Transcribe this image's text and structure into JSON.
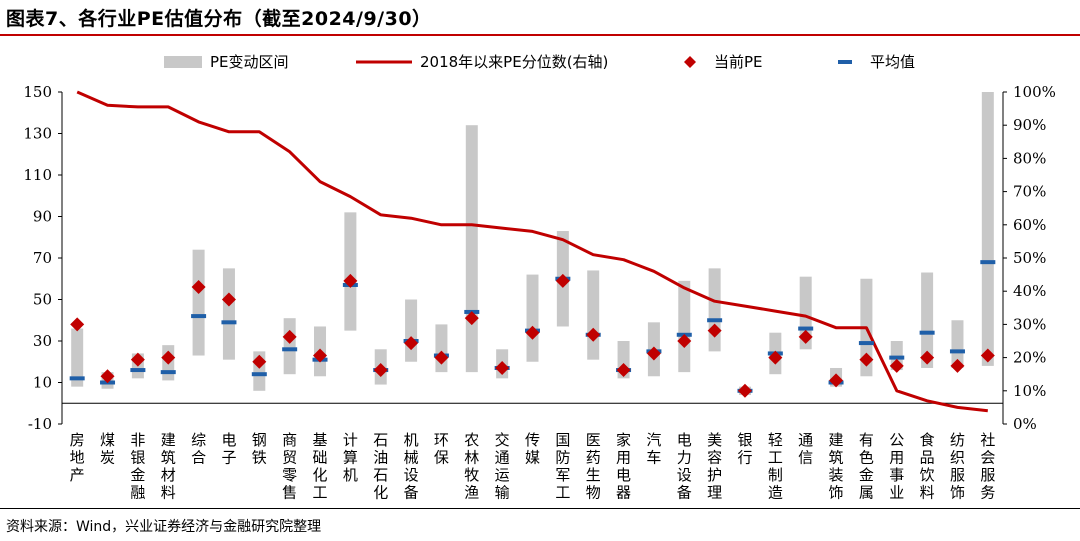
{
  "title": "图表7、各行业PE估值分布（截至2024/9/30）",
  "source": "资料来源：Wind，兴业证券经济与金融研究院整理",
  "colors": {
    "range": "#c8c8c8",
    "line": "#c00000",
    "current": "#c00000",
    "mean": "#1f5fa8",
    "rule": "#c00000"
  },
  "chart_data": {
    "type": "bar",
    "title": "各行业PE估值分布（截至2024/9/30）",
    "categories": [
      "房地产",
      "煤炭",
      "非银金融",
      "建筑材料",
      "综合",
      "电子",
      "钢铁",
      "商贸零售",
      "基础化工",
      "计算机",
      "石油石化",
      "机械设备",
      "环保",
      "农林牧渔",
      "交通运输",
      "传媒",
      "国防军工",
      "医药生物",
      "家用电器",
      "汽车",
      "电力设备",
      "美容护理",
      "银行",
      "轻工制造",
      "通信",
      "建筑装饰",
      "有色金属",
      "公用事业",
      "食品饮料",
      "纺织服饰",
      "社会服务"
    ],
    "series": [
      {
        "name": "PE变动区间",
        "type": "range",
        "axis": "left",
        "low": [
          8,
          7,
          12,
          11,
          23,
          21,
          6,
          14,
          13,
          35,
          9,
          20,
          15,
          15,
          12,
          20,
          37,
          21,
          12,
          13,
          15,
          25,
          4,
          14,
          26,
          8,
          13,
          16,
          17,
          17,
          18
        ],
        "high": [
          36,
          15,
          24,
          28,
          74,
          65,
          25,
          41,
          37,
          92,
          26,
          50,
          38,
          134,
          26,
          62,
          83,
          64,
          30,
          39,
          59,
          65,
          8,
          34,
          61,
          17,
          60,
          30,
          63,
          40,
          150
        ]
      },
      {
        "name": "2018年以来PE分位数(右轴)",
        "type": "line",
        "axis": "right",
        "values": [
          100,
          96,
          95.5,
          95.5,
          91,
          88,
          88,
          82,
          73,
          68.5,
          63,
          62,
          60,
          60,
          59,
          58,
          55.5,
          51,
          49.5,
          46,
          41,
          37,
          35.5,
          34,
          32.5,
          29,
          29,
          10,
          7,
          5,
          4
        ]
      },
      {
        "name": "当前PE",
        "type": "scatter",
        "axis": "left",
        "values": [
          38,
          13,
          21,
          22,
          56,
          50,
          20,
          32,
          23,
          59,
          16,
          29,
          22,
          41,
          17,
          34,
          59,
          33,
          16,
          24,
          30,
          35,
          6,
          22,
          32,
          11,
          21,
          18,
          22,
          18,
          23
        ]
      },
      {
        "name": "平均值",
        "type": "marker",
        "axis": "left",
        "values": [
          12,
          10,
          16,
          15,
          42,
          39,
          14,
          26,
          21,
          57,
          16,
          30,
          23,
          44,
          17,
          35,
          60,
          33,
          16,
          25,
          33,
          40,
          6,
          24,
          36,
          10,
          29,
          22,
          34,
          25,
          68
        ]
      }
    ],
    "left_axis": {
      "ylim": [
        -10,
        150
      ],
      "ticks": [
        150,
        130,
        110,
        90,
        70,
        50,
        30,
        10,
        -10
      ]
    },
    "right_axis": {
      "ylim": [
        0,
        100
      ],
      "ticks": [
        "100%",
        "90%",
        "80%",
        "70%",
        "60%",
        "50%",
        "40%",
        "30%",
        "20%",
        "10%",
        "0%"
      ]
    },
    "legend": {
      "placement": "top"
    }
  }
}
